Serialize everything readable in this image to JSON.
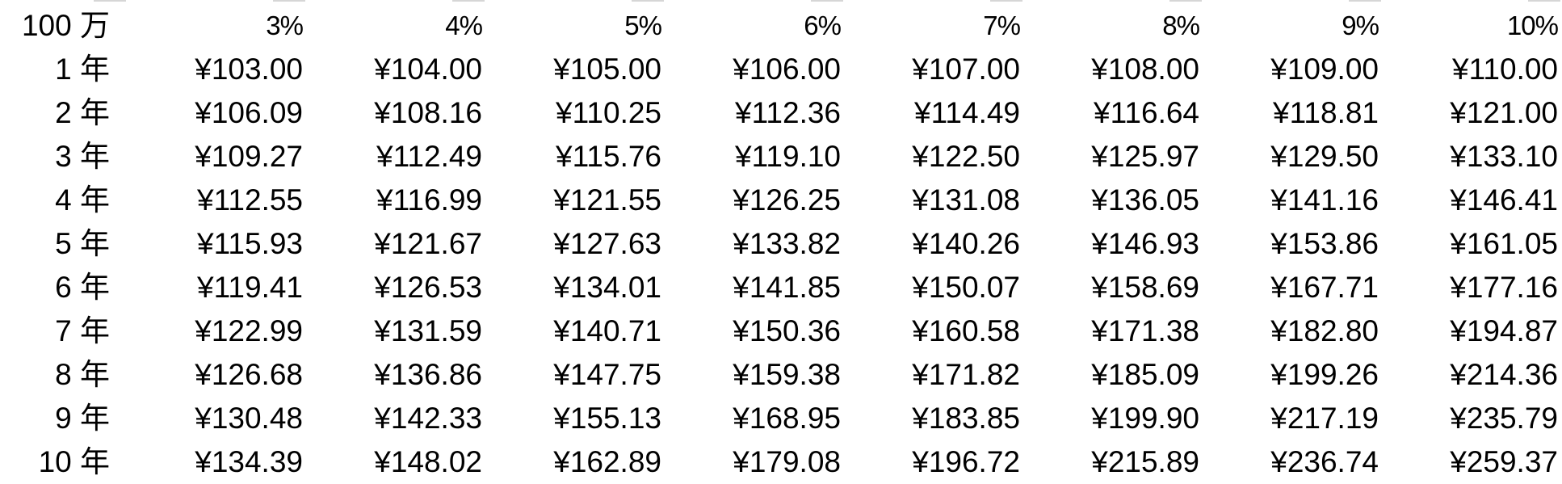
{
  "table": {
    "corner_label": "100 万",
    "columns": [
      "3%",
      "4%",
      "5%",
      "6%",
      "7%",
      "8%",
      "9%",
      "10%"
    ],
    "rows": [
      {
        "label": "1 年",
        "values": [
          "¥103.00",
          "¥104.00",
          "¥105.00",
          "¥106.00",
          "¥107.00",
          "¥108.00",
          "¥109.00",
          "¥110.00"
        ]
      },
      {
        "label": "2 年",
        "values": [
          "¥106.09",
          "¥108.16",
          "¥110.25",
          "¥112.36",
          "¥114.49",
          "¥116.64",
          "¥118.81",
          "¥121.00"
        ]
      },
      {
        "label": "3 年",
        "values": [
          "¥109.27",
          "¥112.49",
          "¥115.76",
          "¥119.10",
          "¥122.50",
          "¥125.97",
          "¥129.50",
          "¥133.10"
        ]
      },
      {
        "label": "4 年",
        "values": [
          "¥112.55",
          "¥116.99",
          "¥121.55",
          "¥126.25",
          "¥131.08",
          "¥136.05",
          "¥141.16",
          "¥146.41"
        ]
      },
      {
        "label": "5 年",
        "values": [
          "¥115.93",
          "¥121.67",
          "¥127.63",
          "¥133.82",
          "¥140.26",
          "¥146.93",
          "¥153.86",
          "¥161.05"
        ]
      },
      {
        "label": "6 年",
        "values": [
          "¥119.41",
          "¥126.53",
          "¥134.01",
          "¥141.85",
          "¥150.07",
          "¥158.69",
          "¥167.71",
          "¥177.16"
        ]
      },
      {
        "label": "7 年",
        "values": [
          "¥122.99",
          "¥131.59",
          "¥140.71",
          "¥150.36",
          "¥160.58",
          "¥171.38",
          "¥182.80",
          "¥194.87"
        ]
      },
      {
        "label": "8 年",
        "values": [
          "¥126.68",
          "¥136.86",
          "¥147.75",
          "¥159.38",
          "¥171.82",
          "¥185.09",
          "¥199.26",
          "¥214.36"
        ]
      },
      {
        "label": "9 年",
        "values": [
          "¥130.48",
          "¥142.33",
          "¥155.13",
          "¥168.95",
          "¥183.85",
          "¥199.90",
          "¥217.19",
          "¥235.79"
        ]
      },
      {
        "label": "10 年",
        "values": [
          "¥134.39",
          "¥148.02",
          "¥162.89",
          "¥179.08",
          "¥196.72",
          "¥215.89",
          "¥236.74",
          "¥259.37"
        ]
      }
    ]
  }
}
